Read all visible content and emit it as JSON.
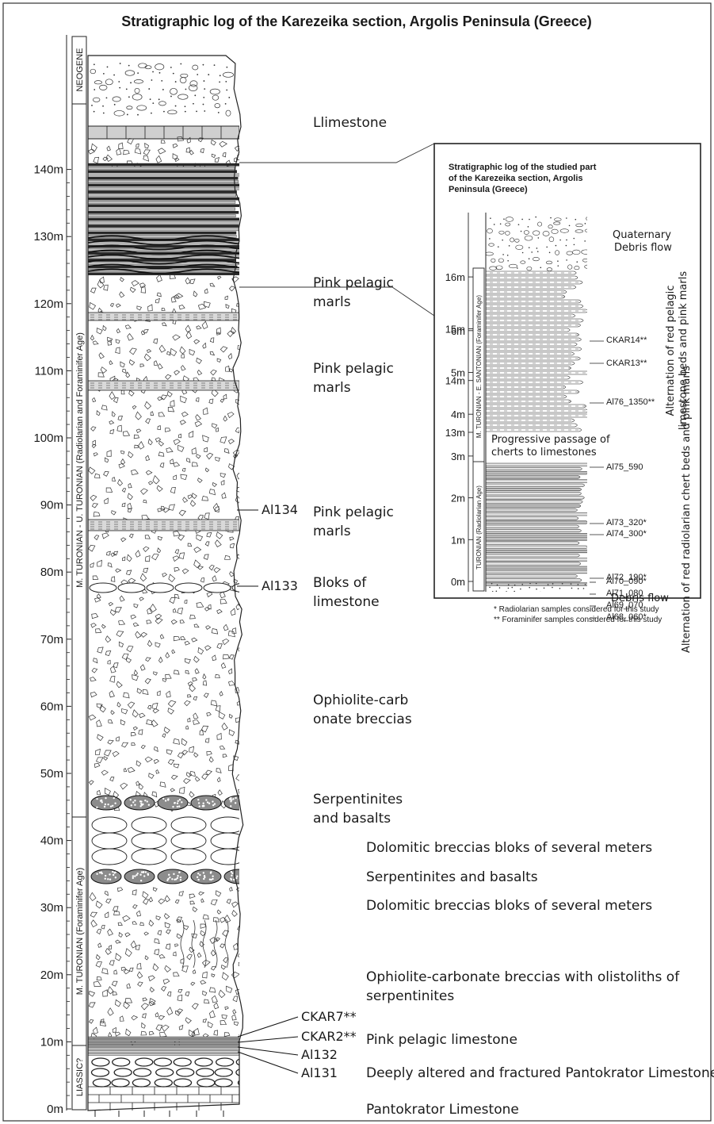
{
  "title": "Stratigraphic log of the Karezeika section, Argolis Peninsula (Greece)",
  "main_log": {
    "depth_ticks": [
      "0m",
      "10m",
      "20m",
      "30m",
      "40m",
      "50m",
      "60m",
      "70m",
      "80m",
      "90m",
      "100m",
      "110m",
      "120m",
      "130m",
      "140m"
    ],
    "age_labels": [
      {
        "id": "neogene",
        "text": "NEOGENE"
      },
      {
        "id": "m-turonian-u-turonian",
        "text": "M. TURONIAN - U. TURONIAN (Radiolarian and Foraminifer Age)"
      },
      {
        "id": "m-turonian",
        "text": "M. TURONIAN (Foraminifer Age)"
      },
      {
        "id": "liassic",
        "text": "LIASSIC?"
      }
    ],
    "lithology_labels": [
      {
        "id": "llimestone",
        "lines": [
          "Llimestone"
        ]
      },
      {
        "id": "pink-pelagic-marls-1",
        "lines": [
          "Pink pelagic",
          "marls"
        ]
      },
      {
        "id": "pink-pelagic-marls-2",
        "lines": [
          "Pink pelagic",
          "marls"
        ]
      },
      {
        "id": "pink-pelagic-marls-3",
        "lines": [
          "Pink pelagic",
          "marls"
        ]
      },
      {
        "id": "bloks-of-limestone",
        "lines": [
          "Bloks of",
          "limestone"
        ]
      },
      {
        "id": "ophiolite-carbonate-breccias",
        "lines": [
          "Ophiolite-carb",
          "onate breccias"
        ]
      },
      {
        "id": "serpentinites-and-basalts-1",
        "lines": [
          "Serpentinites",
          "and basalts"
        ]
      },
      {
        "id": "dolomitic-breccias-1",
        "lines": [
          "Dolomitic breccias bloks of several meters"
        ]
      },
      {
        "id": "serpentinites-and-basalts-2",
        "lines": [
          "Serpentinites and basalts"
        ]
      },
      {
        "id": "dolomitic-breccias-2",
        "lines": [
          "Dolomitic breccias bloks of several meters"
        ]
      },
      {
        "id": "ophiolite-carbonate-olistoliths",
        "lines": [
          "Ophiolite-carbonate breccias with olistoliths of",
          "serpentinites"
        ]
      },
      {
        "id": "pink-pelagic-limestone",
        "lines": [
          "Pink pelagic limestone"
        ]
      },
      {
        "id": "deeply-altered-pantokrator",
        "lines": [
          "Deeply altered and fractured Pantokrator Limestone"
        ]
      },
      {
        "id": "pantokrator-limestone",
        "lines": [
          "Pantokrator Limestone"
        ]
      }
    ],
    "samples": [
      "Al134",
      "Al133",
      "CKAR7**",
      "CKAR2**",
      "Al132",
      "Al131"
    ]
  },
  "inset_log": {
    "title_lines": [
      "Stratigraphic log of the studied part",
      "of the Karezeika section, Argolis",
      "Peninsula (Greece)"
    ],
    "depth_ticks_lower": [
      "0m",
      "1m",
      "2m",
      "3m",
      "4m",
      "5m",
      "6m"
    ],
    "depth_ticks_upper": [
      "13m",
      "14m",
      "15m",
      "16m"
    ],
    "age_labels": [
      {
        "id": "m-turonian-e-santonian",
        "text": "M. TURONIAN - E. SANTONIAN (Foraminifer Age)"
      },
      {
        "id": "turonian",
        "text": "TURONIAN (Radiolarian Age)"
      }
    ],
    "lithology_labels": [
      {
        "id": "quaternary-debris-flow",
        "lines": [
          "Quaternary",
          "Debris flow"
        ]
      },
      {
        "id": "progressive-passage",
        "lines": [
          "Progressive passage of",
          "cherts to limestones"
        ]
      },
      {
        "id": "debris-flow",
        "lines": [
          "Debris flow"
        ]
      }
    ],
    "vertical_labels": [
      {
        "id": "alternation-pelagic",
        "lines": [
          "Alternation of red pelagic",
          "limestone beds and pink marls"
        ]
      },
      {
        "id": "alternation-radiolarian",
        "lines": [
          "Alternation of red radiolarian chert beds and pink marls"
        ]
      }
    ],
    "samples": [
      "CKAR14**",
      "CKAR13**",
      "Al76_1350**",
      "Al75_590",
      "Al73_320*",
      "Al74_300*",
      "Al72_190*",
      "Al70_090*",
      "Al71_080",
      "Al69_070",
      "Al68_060*"
    ],
    "footnotes": [
      "* Radiolarian samples considered for this study",
      "** Foraminifer samples considered for this study"
    ]
  }
}
